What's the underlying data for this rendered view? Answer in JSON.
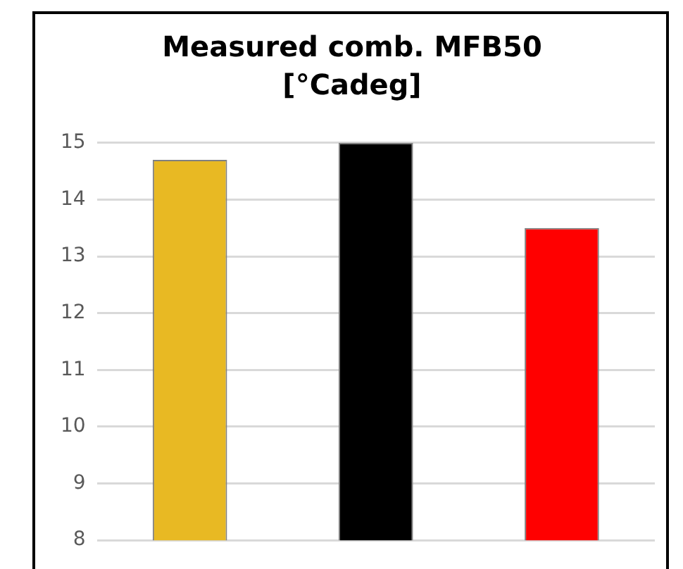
{
  "chart_data": {
    "type": "bar",
    "title": "Measured comb. MFB50 [°Cadeg]",
    "categories": [
      null,
      null,
      null
    ],
    "values": [
      14.7,
      15.0,
      13.5
    ],
    "colors": [
      "#e8b923",
      "#000000",
      "#ff0000"
    ],
    "ylim": [
      8,
      15
    ],
    "yticks": [
      8,
      9,
      10,
      11,
      12,
      13,
      14,
      15
    ],
    "grid": "y"
  }
}
